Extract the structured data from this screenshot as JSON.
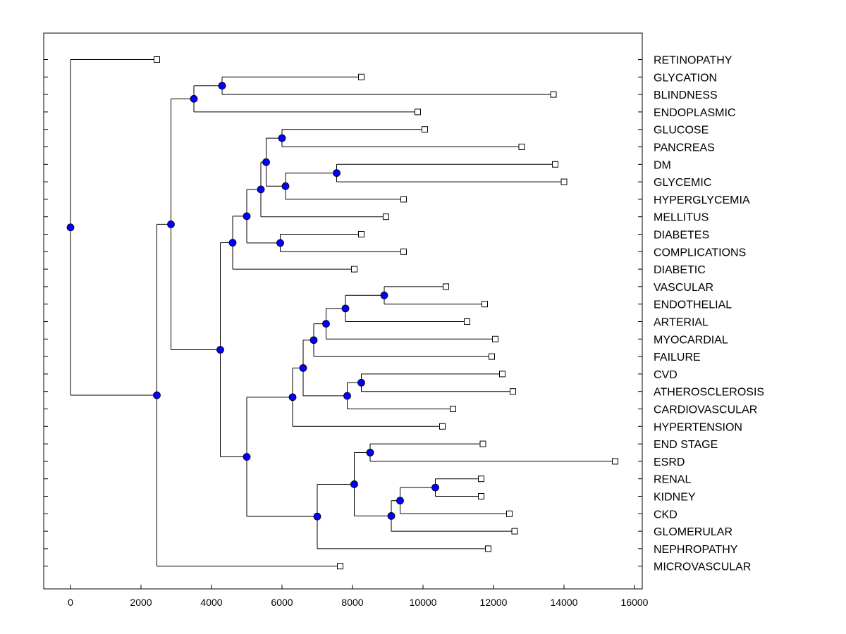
{
  "chart_data": {
    "type": "dendrogram",
    "title": "",
    "xlabel": "",
    "ylabel": "",
    "xlim": [
      -750,
      16250
    ],
    "xticks": [
      0,
      2000,
      4000,
      6000,
      8000,
      10000,
      12000,
      14000,
      16000
    ],
    "tick_labels": [
      "0",
      "2000",
      "4000",
      "6000",
      "8000",
      "10000",
      "12000",
      "14000",
      "16000"
    ],
    "leaf_marker_color": "#ffffff",
    "node_marker_color": "#0000ff",
    "leaves": [
      {
        "label": "RETINOPATHY",
        "value": 2450
      },
      {
        "label": "GLYCATION",
        "value": 8250
      },
      {
        "label": "BLINDNESS",
        "value": 13700
      },
      {
        "label": "ENDOPLASMIC",
        "value": 9850
      },
      {
        "label": "GLUCOSE",
        "value": 10050
      },
      {
        "label": "PANCREAS",
        "value": 12800
      },
      {
        "label": "DM",
        "value": 13750
      },
      {
        "label": "GLYCEMIC",
        "value": 14000
      },
      {
        "label": "HYPERGLYCEMIA",
        "value": 9450
      },
      {
        "label": "MELLITUS",
        "value": 8950
      },
      {
        "label": "DIABETES",
        "value": 8250
      },
      {
        "label": "COMPLICATIONS",
        "value": 9450
      },
      {
        "label": "DIABETIC",
        "value": 8050
      },
      {
        "label": "VASCULAR",
        "value": 10650
      },
      {
        "label": "ENDOTHELIAL",
        "value": 11750
      },
      {
        "label": "ARTERIAL",
        "value": 11250
      },
      {
        "label": "MYOCARDIAL",
        "value": 12050
      },
      {
        "label": "FAILURE",
        "value": 11950
      },
      {
        "label": "CVD",
        "value": 12250
      },
      {
        "label": "ATHEROSCLEROSIS",
        "value": 12550
      },
      {
        "label": "CARDIOVASCULAR",
        "value": 10850
      },
      {
        "label": "HYPERTENSION",
        "value": 10550
      },
      {
        "label": "END STAGE",
        "value": 11700
      },
      {
        "label": "ESRD",
        "value": 15450
      },
      {
        "label": "RENAL",
        "value": 11650
      },
      {
        "label": "KIDNEY",
        "value": 11650
      },
      {
        "label": "CKD",
        "value": 12450
      },
      {
        "label": "GLOMERULAR",
        "value": 12600
      },
      {
        "label": "NEPHROPATHY",
        "value": 11850
      },
      {
        "label": "MICROVASCULAR",
        "value": 7650
      }
    ],
    "nodes": [
      {
        "id": "n1",
        "value": 4300,
        "children": [
          "L1",
          "L2"
        ]
      },
      {
        "id": "n2",
        "value": 3500,
        "children": [
          "n1",
          "L3"
        ]
      },
      {
        "id": "n3",
        "value": 6000,
        "children": [
          "L4",
          "L5"
        ]
      },
      {
        "id": "n4",
        "value": 7550,
        "children": [
          "L6",
          "L7"
        ]
      },
      {
        "id": "n5",
        "value": 6100,
        "children": [
          "n4",
          "L8"
        ]
      },
      {
        "id": "n6",
        "value": 5550,
        "children": [
          "n3",
          "n5"
        ]
      },
      {
        "id": "n7",
        "value": 5400,
        "children": [
          "n6",
          "L9"
        ]
      },
      {
        "id": "n8",
        "value": 5950,
        "children": [
          "L10",
          "L11"
        ]
      },
      {
        "id": "n9",
        "value": 5000,
        "children": [
          "n7",
          "n8"
        ]
      },
      {
        "id": "n10",
        "value": 4600,
        "children": [
          "n9",
          "L12"
        ]
      },
      {
        "id": "n11",
        "value": 8900,
        "children": [
          "L13",
          "L14"
        ]
      },
      {
        "id": "n12",
        "value": 7800,
        "children": [
          "n11",
          "L15"
        ]
      },
      {
        "id": "n13",
        "value": 7250,
        "children": [
          "n12",
          "L16"
        ]
      },
      {
        "id": "n14",
        "value": 6900,
        "children": [
          "n13",
          "L17"
        ]
      },
      {
        "id": "n15",
        "value": 8250,
        "children": [
          "L18",
          "L19"
        ]
      },
      {
        "id": "n16",
        "value": 7850,
        "children": [
          "n15",
          "L20"
        ]
      },
      {
        "id": "n17",
        "value": 6600,
        "children": [
          "n14",
          "n16"
        ]
      },
      {
        "id": "n18",
        "value": 6300,
        "children": [
          "n17",
          "L21"
        ]
      },
      {
        "id": "n19",
        "value": 8500,
        "children": [
          "L22",
          "L23"
        ]
      },
      {
        "id": "n20",
        "value": 10350,
        "children": [
          "L24",
          "L25"
        ]
      },
      {
        "id": "n21",
        "value": 9350,
        "children": [
          "n20",
          "L26"
        ]
      },
      {
        "id": "n22",
        "value": 9100,
        "children": [
          "n21",
          "L27"
        ]
      },
      {
        "id": "n23",
        "value": 8050,
        "children": [
          "n19",
          "n22"
        ]
      },
      {
        "id": "n24",
        "value": 7000,
        "children": [
          "n23",
          "L28"
        ]
      },
      {
        "id": "n25",
        "value": 5000,
        "children": [
          "n18",
          "n24"
        ]
      },
      {
        "id": "n26",
        "value": 4250,
        "children": [
          "n10",
          "n25"
        ]
      },
      {
        "id": "n27",
        "value": 2850,
        "children": [
          "n2",
          "n26"
        ]
      },
      {
        "id": "n28",
        "value": 2450,
        "children": [
          "n27",
          "L29"
        ]
      },
      {
        "id": "n29",
        "value": 0,
        "children": [
          "L0",
          "n28"
        ]
      }
    ]
  }
}
